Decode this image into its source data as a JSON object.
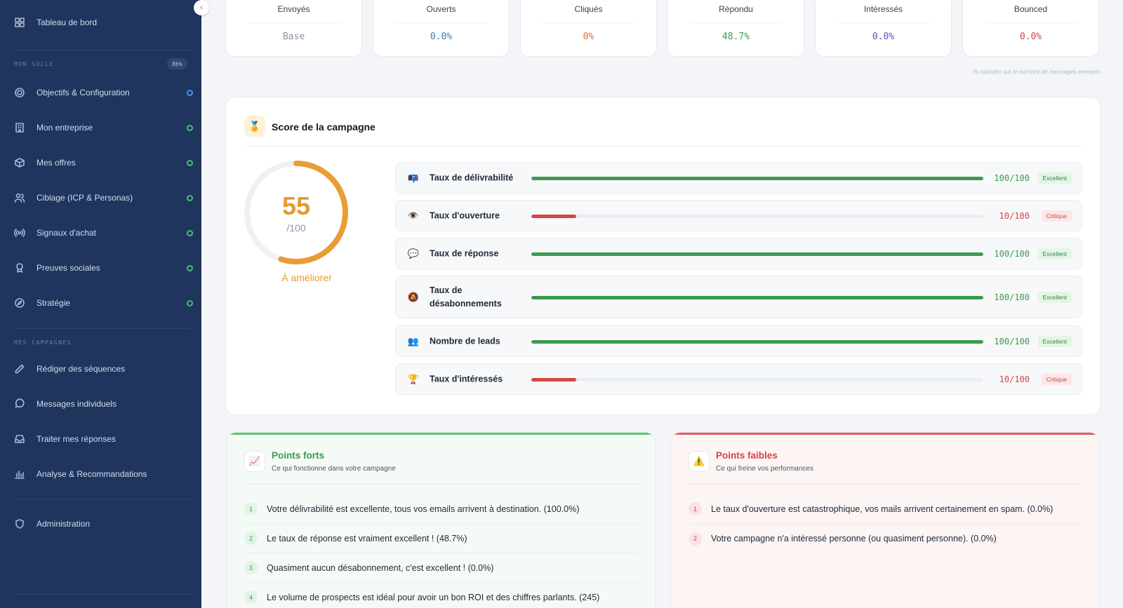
{
  "sidebar": {
    "dashboard": "Tableau de bord",
    "section1": "MON SOCLE",
    "section1_badge": "86%",
    "socle_items": [
      {
        "label": "Objectifs & Configuration",
        "icon": "target-icon",
        "status": "blue"
      },
      {
        "label": "Mon entreprise",
        "icon": "building-icon",
        "status": "green"
      },
      {
        "label": "Mes offres",
        "icon": "box-icon",
        "status": "green"
      },
      {
        "label": "Ciblage (ICP & Personas)",
        "icon": "users-icon",
        "status": "green"
      },
      {
        "label": "Signaux d'achat",
        "icon": "signal-icon",
        "status": "green"
      },
      {
        "label": "Preuves sociales",
        "icon": "award-icon",
        "status": "green"
      },
      {
        "label": "Stratégie",
        "icon": "compass-icon",
        "status": "green"
      }
    ],
    "section2": "MES CAMPAGNES",
    "campaign_items": [
      {
        "label": "Rédiger des séquences",
        "icon": "pencil-icon"
      },
      {
        "label": "Messages individuels",
        "icon": "chat-icon"
      },
      {
        "label": "Traiter mes réponses",
        "icon": "inbox-icon"
      },
      {
        "label": "Analyse & Recommandations",
        "icon": "bar-chart-icon"
      }
    ],
    "admin": "Administration"
  },
  "stats": [
    {
      "label": "Envoyés",
      "value": "Base",
      "color": "#8b95a5"
    },
    {
      "label": "Ouverts",
      "value": "0.0%",
      "color": "#2f7fc1"
    },
    {
      "label": "Cliqués",
      "value": "0%",
      "color": "#e56a2f"
    },
    {
      "label": "Répondu",
      "value": "48.7%",
      "color": "#3c9a4e"
    },
    {
      "label": "Intéressés",
      "value": "0.0%",
      "color": "#6b46c1"
    },
    {
      "label": "Bounced",
      "value": "0.0%",
      "color": "#d64545"
    }
  ],
  "stats_note": "% calculés sur le nombre de messages envoyés",
  "score": {
    "title": "Score de la campagne",
    "value": "55",
    "value_fraction": 0.55,
    "denominator": "/100",
    "verdict": "À améliorer",
    "metrics": [
      {
        "icon": "📭",
        "label": "Taux de délivrabilité",
        "score": "100/100",
        "fraction": 1.0,
        "badge": "Excellent",
        "level": "good"
      },
      {
        "icon": "👁️",
        "label": "Taux d'ouverture",
        "score": "10/100",
        "fraction": 0.1,
        "badge": "Critique",
        "level": "bad"
      },
      {
        "icon": "💬",
        "label": "Taux de réponse",
        "score": "100/100",
        "fraction": 1.0,
        "badge": "Excellent",
        "level": "good"
      },
      {
        "icon": "🔕",
        "label": "Taux de désabonnements",
        "score": "100/100",
        "fraction": 1.0,
        "badge": "Excellent",
        "level": "good"
      },
      {
        "icon": "👥",
        "label": "Nombre de leads",
        "score": "100/100",
        "fraction": 1.0,
        "badge": "Excellent",
        "level": "good"
      },
      {
        "icon": "🏆",
        "label": "Taux d'intéressés",
        "score": "10/100",
        "fraction": 0.1,
        "badge": "Critique",
        "level": "bad"
      }
    ]
  },
  "strengths": {
    "title": "Points forts",
    "subtitle": "Ce qui fonctionne dans votre campagne",
    "icon": "📈",
    "items": [
      "Votre délivrabilité est excellente, tous vos emails arrivent à destination. (100.0%)",
      "Le taux de réponse est vraiment excellent ! (48.7%)",
      "Quasiment aucun désabonnement, c'est excellent ! (0.0%)",
      "Le volume de prospects est idéal pour avoir un bon ROI et des chiffres parlants. (245)"
    ]
  },
  "weaknesses": {
    "title": "Points faibles",
    "subtitle": "Ce qui freine vos performances",
    "icon": "⚠️",
    "items": [
      "Le taux d'ouverture est catastrophique, vos mails arrivent certainement en spam. (0.0%)",
      "Votre campagne n'a intéressé personne (ou quasiment personne). (0.0%)"
    ]
  }
}
